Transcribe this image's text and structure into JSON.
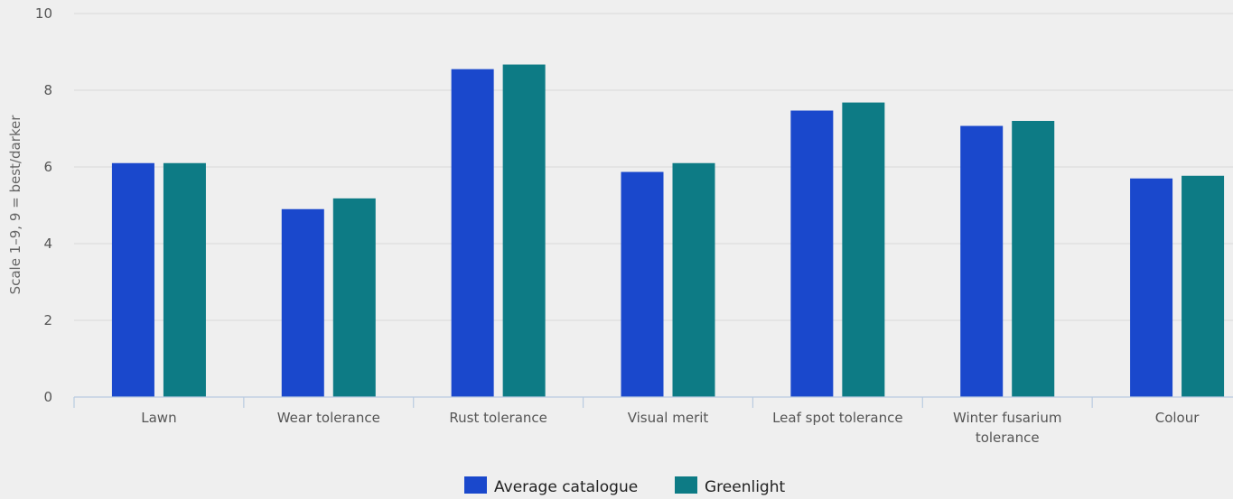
{
  "chart_data": {
    "type": "bar",
    "categories": [
      [
        "Lawn"
      ],
      [
        "Wear tolerance"
      ],
      [
        "Rust tolerance"
      ],
      [
        "Visual merit"
      ],
      [
        "Leaf spot tolerance"
      ],
      [
        "Winter fusarium",
        "tolerance"
      ],
      [
        "Colour"
      ]
    ],
    "series": [
      {
        "name": "Average catalogue",
        "color": "#1a48cc",
        "values": [
          6.1,
          4.9,
          8.55,
          5.87,
          7.47,
          7.07,
          5.7
        ]
      },
      {
        "name": "Greenlight",
        "color": "#0d7b85",
        "values": [
          6.1,
          5.18,
          8.67,
          6.1,
          7.68,
          7.2,
          5.77
        ]
      }
    ],
    "ylabel": "Scale 1–9, 9 = best/darker",
    "xlabel": "",
    "ylim": [
      0,
      10
    ],
    "yticks": [
      0,
      2,
      4,
      6,
      8,
      10
    ],
    "grid": true,
    "legend": "bottom-center"
  }
}
